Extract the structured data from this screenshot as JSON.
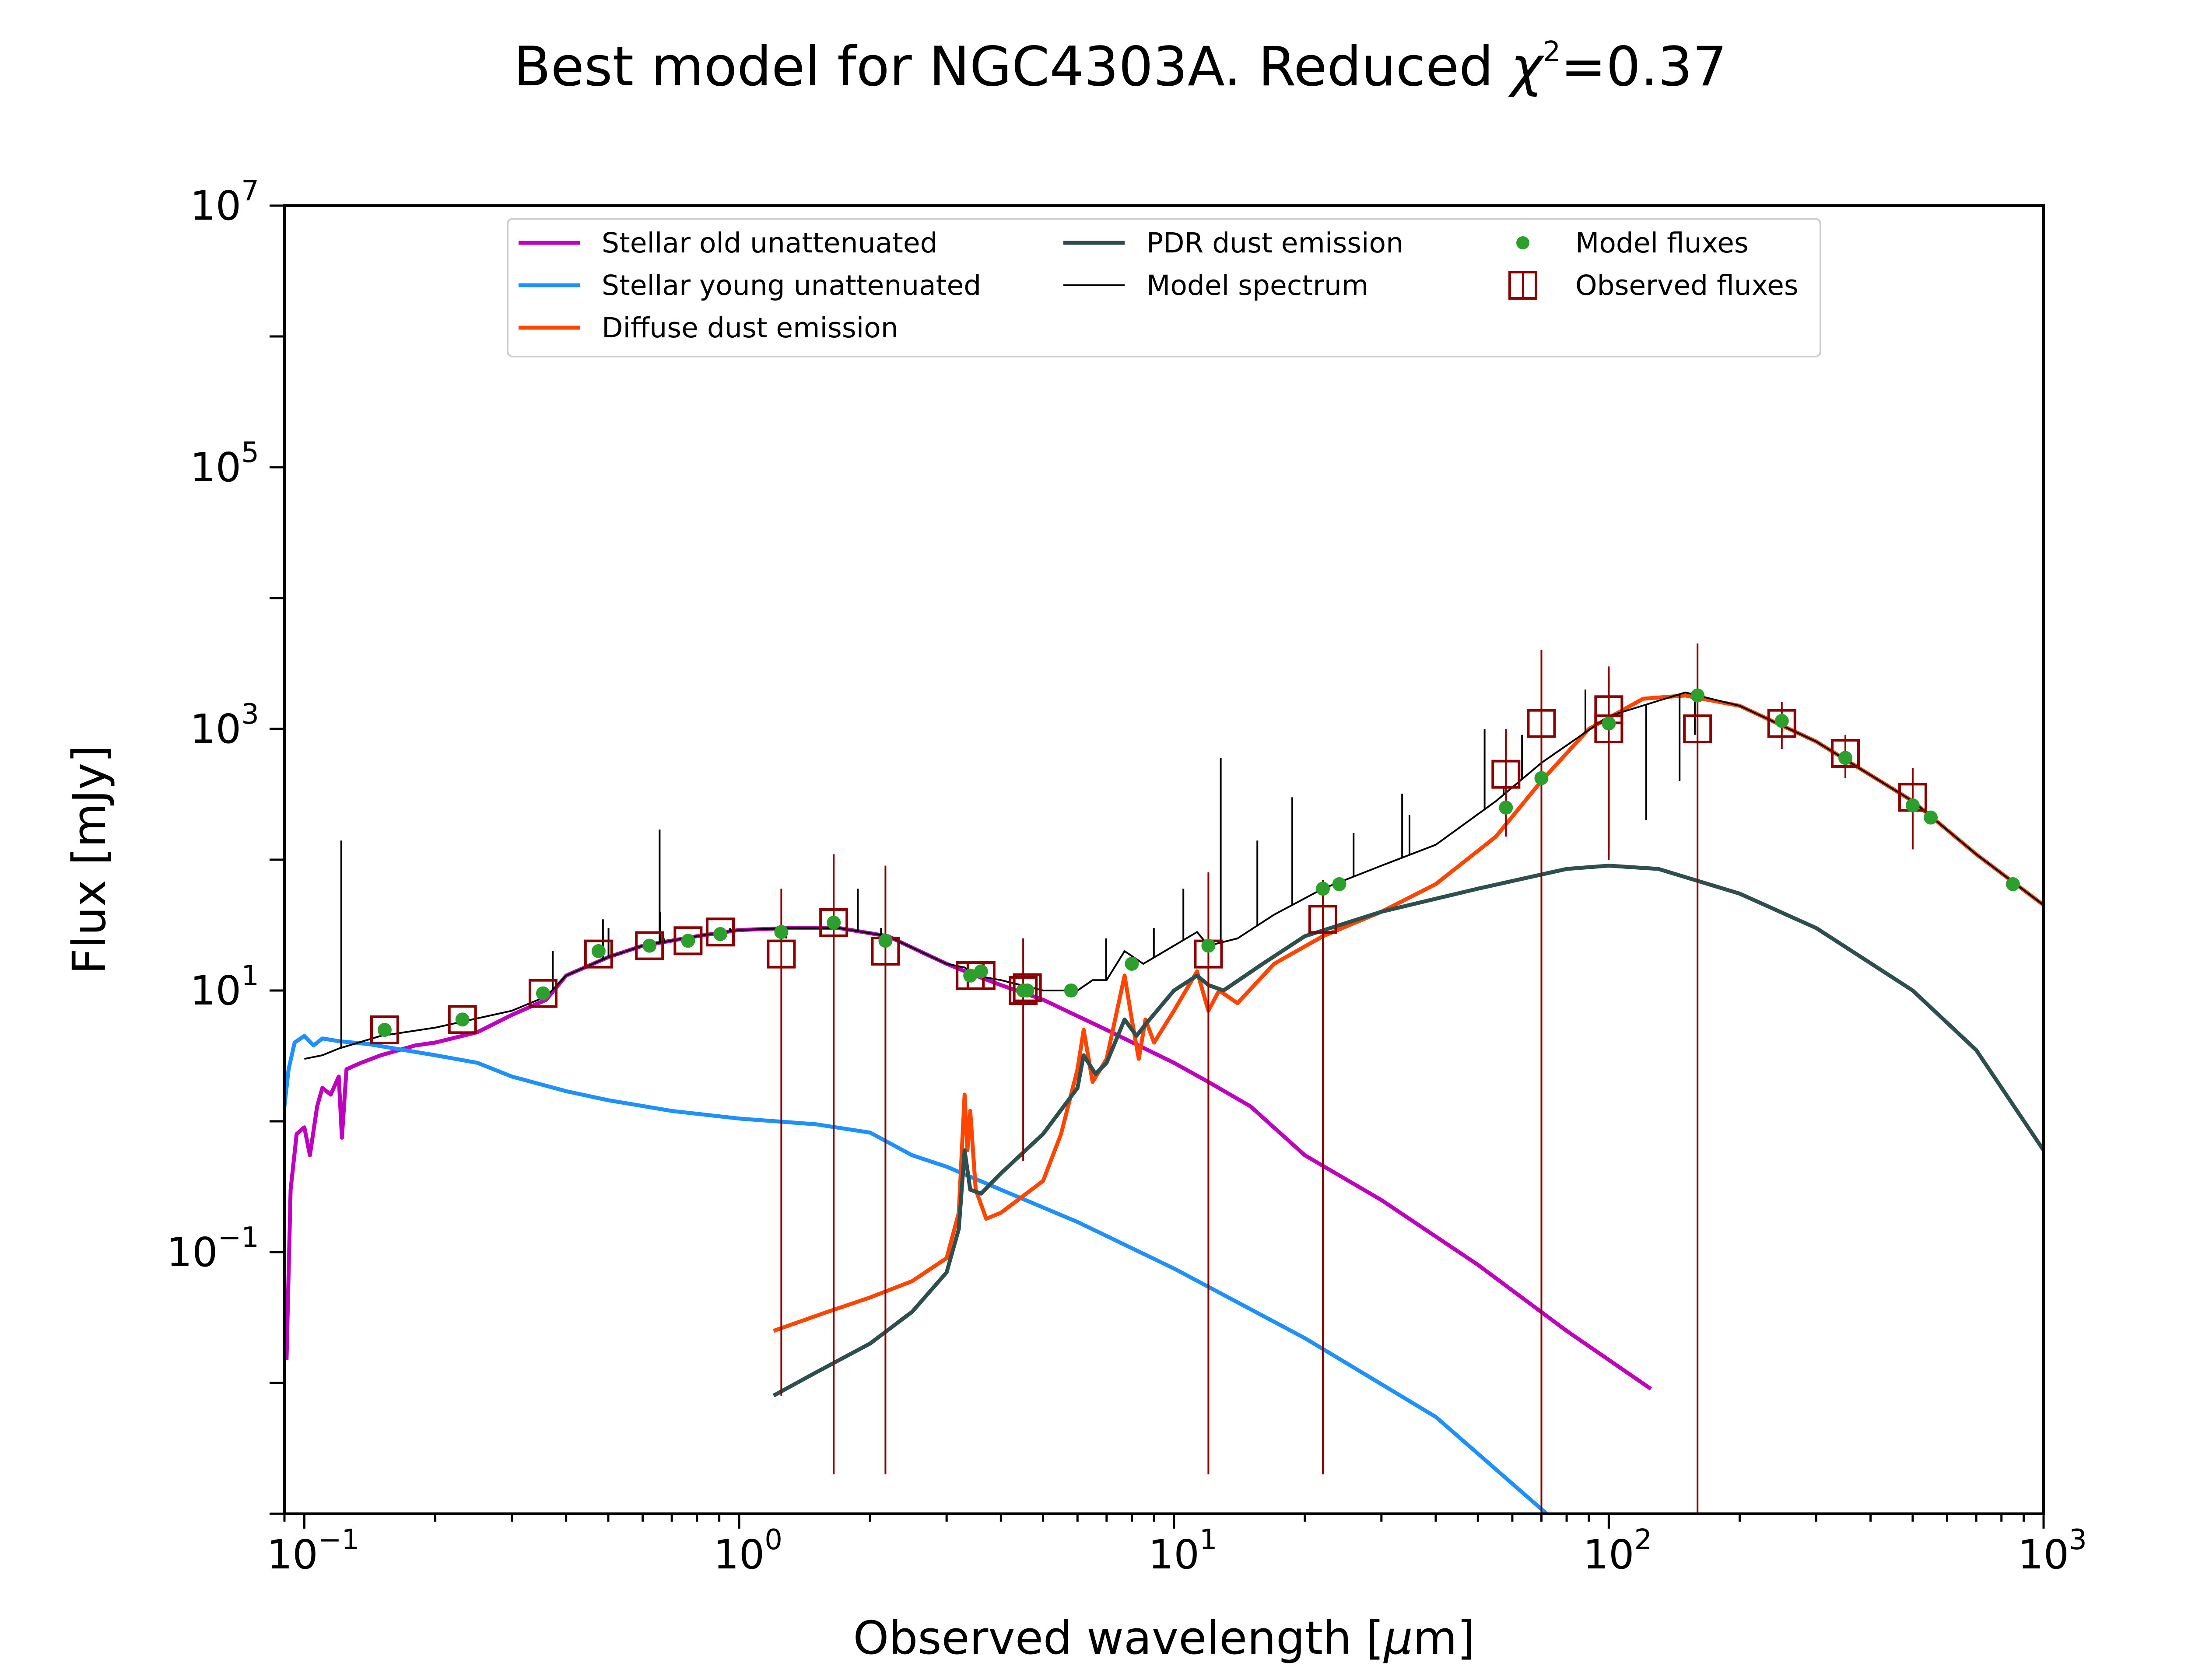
{
  "chart_data": {
    "type": "line",
    "title": "Best model for NGC4303A. Reduced χ²=0.37",
    "title_parts": {
      "before": "Best model for NGC4303A. Reduced ",
      "chi": "χ",
      "power": "2",
      "after": "=0.37"
    },
    "xlabel": "Observed wavelength [μm]",
    "xlabel_parts": {
      "before": "Observed wavelength [",
      "mu": "μ",
      "after": "m]"
    },
    "ylabel": "Flux [mJy]",
    "xscale": "log",
    "yscale": "log",
    "xlim": [
      0.09,
      1000
    ],
    "ylim": [
      0.001,
      10000000
    ],
    "x_ticks": [
      {
        "base": "10",
        "exp": "−1",
        "value": 0.1
      },
      {
        "base": "10",
        "exp": "0",
        "value": 1
      },
      {
        "base": "10",
        "exp": "1",
        "value": 10
      },
      {
        "base": "10",
        "exp": "2",
        "value": 100
      },
      {
        "base": "10",
        "exp": "3",
        "value": 1000
      }
    ],
    "y_ticks": [
      {
        "base": "10",
        "exp": "−1",
        "value": 0.1
      },
      {
        "base": "10",
        "exp": "1",
        "value": 10
      },
      {
        "base": "10",
        "exp": "3",
        "value": 1000
      },
      {
        "base": "10",
        "exp": "5",
        "value": 100000
      },
      {
        "base": "10",
        "exp": "7",
        "value": 10000000
      }
    ],
    "grid": false,
    "legend": {
      "position": "top-center",
      "columns": [
        [
          {
            "label": "Stellar old unattenuated",
            "kind": "line",
            "color": "#bf00bf"
          },
          {
            "label": "Stellar young unattenuated",
            "kind": "line",
            "color": "#1e90ff"
          },
          {
            "label": "Diffuse dust emission",
            "kind": "line",
            "color": "#ff4500"
          }
        ],
        [
          {
            "label": "PDR dust emission",
            "kind": "line",
            "color": "#2f4f4f"
          },
          {
            "label": "Model spectrum",
            "kind": "thin-line",
            "color": "#000000"
          }
        ],
        [
          {
            "label": "Model fluxes",
            "kind": "dot",
            "color": "#2ca02c"
          },
          {
            "label": "Observed fluxes",
            "kind": "square",
            "color": "#8b0000"
          }
        ]
      ]
    },
    "series": [
      {
        "name": "Stellar old unattenuated",
        "color": "#bf00bf",
        "points": [
          [
            0.091,
            0.015
          ],
          [
            0.093,
            0.3
          ],
          [
            0.096,
            0.8
          ],
          [
            0.1,
            0.9
          ],
          [
            0.103,
            0.55
          ],
          [
            0.107,
            1.3
          ],
          [
            0.11,
            1.8
          ],
          [
            0.115,
            1.6
          ],
          [
            0.12,
            2.2
          ],
          [
            0.122,
            0.75
          ],
          [
            0.125,
            2.5
          ],
          [
            0.135,
            2.8
          ],
          [
            0.15,
            3.2
          ],
          [
            0.18,
            3.8
          ],
          [
            0.2,
            4.0
          ],
          [
            0.25,
            4.8
          ],
          [
            0.3,
            6.5
          ],
          [
            0.36,
            8.5
          ],
          [
            0.4,
            13
          ],
          [
            0.5,
            18
          ],
          [
            0.6,
            22
          ],
          [
            0.8,
            26
          ],
          [
            1.0,
            29
          ],
          [
            1.3,
            30
          ],
          [
            1.7,
            30
          ],
          [
            2.2,
            26
          ],
          [
            2.6,
            20
          ],
          [
            3.0,
            16
          ],
          [
            3.5,
            13
          ],
          [
            4.0,
            11
          ],
          [
            5.0,
            8.5
          ],
          [
            7.0,
            5.0
          ],
          [
            10.0,
            2.8
          ],
          [
            12,
            2.0
          ],
          [
            15,
            1.3
          ],
          [
            20,
            0.55
          ],
          [
            30,
            0.25
          ],
          [
            50,
            0.08
          ],
          [
            80,
            0.025
          ],
          [
            125,
            0.009
          ]
        ]
      },
      {
        "name": "Stellar young unattenuated",
        "color": "#1e90ff",
        "points": [
          [
            0.09,
            1.3
          ],
          [
            0.092,
            2.5
          ],
          [
            0.095,
            4.0
          ],
          [
            0.1,
            4.5
          ],
          [
            0.105,
            3.8
          ],
          [
            0.11,
            4.3
          ],
          [
            0.12,
            4.1
          ],
          [
            0.14,
            3.9
          ],
          [
            0.17,
            3.5
          ],
          [
            0.2,
            3.2
          ],
          [
            0.25,
            2.8
          ],
          [
            0.3,
            2.2
          ],
          [
            0.4,
            1.7
          ],
          [
            0.5,
            1.45
          ],
          [
            0.7,
            1.2
          ],
          [
            1.0,
            1.05
          ],
          [
            1.5,
            0.95
          ],
          [
            2.0,
            0.82
          ],
          [
            2.5,
            0.55
          ],
          [
            3.0,
            0.45
          ],
          [
            4.0,
            0.3
          ],
          [
            6.0,
            0.17
          ],
          [
            10,
            0.075
          ],
          [
            20,
            0.022
          ],
          [
            40,
            0.0055
          ],
          [
            72,
            0.001
          ]
        ]
      },
      {
        "name": "Diffuse dust emission",
        "color": "#ff4500",
        "points": [
          [
            1.2,
            0.025
          ],
          [
            1.6,
            0.035
          ],
          [
            2.0,
            0.045
          ],
          [
            2.5,
            0.06
          ],
          [
            3.0,
            0.09
          ],
          [
            3.2,
            0.2
          ],
          [
            3.3,
            1.6
          ],
          [
            3.35,
            0.6
          ],
          [
            3.4,
            1.2
          ],
          [
            3.5,
            0.3
          ],
          [
            3.7,
            0.18
          ],
          [
            4.0,
            0.2
          ],
          [
            5.0,
            0.35
          ],
          [
            5.5,
            0.8
          ],
          [
            6.0,
            2.5
          ],
          [
            6.2,
            5.0
          ],
          [
            6.5,
            2.0
          ],
          [
            7.0,
            3.0
          ],
          [
            7.7,
            13
          ],
          [
            8.0,
            6
          ],
          [
            8.3,
            3.0
          ],
          [
            8.6,
            6
          ],
          [
            9.0,
            4
          ],
          [
            10,
            7
          ],
          [
            11.3,
            14
          ],
          [
            12,
            7
          ],
          [
            12.7,
            10
          ],
          [
            14,
            8
          ],
          [
            17,
            16
          ],
          [
            22,
            26
          ],
          [
            30,
            40
          ],
          [
            40,
            65
          ],
          [
            55,
            150
          ],
          [
            70,
            400
          ],
          [
            90,
            1000
          ],
          [
            120,
            1700
          ],
          [
            150,
            1800
          ],
          [
            200,
            1500
          ],
          [
            300,
            800
          ],
          [
            500,
            280
          ],
          [
            700,
            110
          ],
          [
            1000,
            45
          ]
        ]
      },
      {
        "name": "PDR dust emission",
        "color": "#2f4f4f",
        "points": [
          [
            1.2,
            0.008
          ],
          [
            1.5,
            0.012
          ],
          [
            2.0,
            0.02
          ],
          [
            2.5,
            0.035
          ],
          [
            3.0,
            0.07
          ],
          [
            3.2,
            0.15
          ],
          [
            3.3,
            0.6
          ],
          [
            3.4,
            0.3
          ],
          [
            3.6,
            0.28
          ],
          [
            4.0,
            0.4
          ],
          [
            5.0,
            0.8
          ],
          [
            6.0,
            1.8
          ],
          [
            6.2,
            3.2
          ],
          [
            6.6,
            2.3
          ],
          [
            7.0,
            2.8
          ],
          [
            7.7,
            6
          ],
          [
            8.2,
            4.5
          ],
          [
            8.6,
            5.5
          ],
          [
            10,
            10
          ],
          [
            11.3,
            13
          ],
          [
            12,
            11
          ],
          [
            13,
            10
          ],
          [
            16,
            16
          ],
          [
            20,
            26
          ],
          [
            30,
            40
          ],
          [
            50,
            60
          ],
          [
            80,
            85
          ],
          [
            100,
            90
          ],
          [
            130,
            85
          ],
          [
            200,
            55
          ],
          [
            300,
            30
          ],
          [
            500,
            10
          ],
          [
            700,
            3.5
          ],
          [
            1000,
            0.6
          ]
        ]
      },
      {
        "name": "Model spectrum",
        "color": "#000000",
        "points": [
          [
            0.1,
            3.0
          ],
          [
            0.11,
            3.2
          ],
          [
            0.12,
            3.6
          ],
          [
            0.15,
            4.5
          ],
          [
            0.2,
            5.2
          ],
          [
            0.3,
            7
          ],
          [
            0.36,
            9
          ],
          [
            0.4,
            13
          ],
          [
            0.5,
            18
          ],
          [
            0.6,
            22
          ],
          [
            0.8,
            26
          ],
          [
            1.0,
            29
          ],
          [
            1.3,
            30
          ],
          [
            1.7,
            30
          ],
          [
            2.2,
            26
          ],
          [
            2.6,
            20
          ],
          [
            3.0,
            16
          ],
          [
            3.3,
            15
          ],
          [
            3.5,
            13
          ],
          [
            4.0,
            12
          ],
          [
            5.0,
            10
          ],
          [
            6.0,
            10
          ],
          [
            6.5,
            12
          ],
          [
            7.0,
            12
          ],
          [
            7.7,
            20
          ],
          [
            8.5,
            16
          ],
          [
            10,
            22
          ],
          [
            11.3,
            28
          ],
          [
            12,
            22
          ],
          [
            14,
            25
          ],
          [
            17,
            38
          ],
          [
            22,
            60
          ],
          [
            30,
            90
          ],
          [
            40,
            130
          ],
          [
            55,
            280
          ],
          [
            70,
            550
          ],
          [
            100,
            1250
          ],
          [
            150,
            1900
          ],
          [
            200,
            1500
          ],
          [
            300,
            800
          ],
          [
            500,
            280
          ],
          [
            700,
            110
          ],
          [
            1000,
            45
          ]
        ]
      }
    ],
    "emission_lines": [
      [
        0.1216,
        140
      ],
      [
        0.3727,
        20
      ],
      [
        0.4861,
        35
      ],
      [
        0.5007,
        30
      ],
      [
        0.6563,
        170
      ],
      [
        0.6583,
        40
      ],
      [
        0.6716,
        25
      ],
      [
        0.9531,
        30
      ],
      [
        1.282,
        25
      ],
      [
        1.875,
        60
      ],
      [
        2.12,
        30
      ],
      [
        6.98,
        25
      ],
      [
        8.99,
        30
      ],
      [
        10.51,
        60
      ],
      [
        12.81,
        600
      ],
      [
        15.55,
        140
      ],
      [
        18.71,
        300
      ],
      [
        25.89,
        160
      ],
      [
        33.48,
        320
      ],
      [
        34.81,
        220
      ],
      [
        51.81,
        1000
      ],
      [
        57.32,
        350
      ],
      [
        63.18,
        900
      ],
      [
        88.36,
        2000
      ],
      [
        121.9,
        200
      ],
      [
        145.5,
        400
      ],
      [
        157.7,
        900
      ]
    ],
    "model_fluxes": [
      [
        0.153,
        5
      ],
      [
        0.231,
        6
      ],
      [
        0.354,
        9.5
      ],
      [
        0.475,
        20
      ],
      [
        0.622,
        22
      ],
      [
        0.763,
        24
      ],
      [
        0.905,
        27
      ],
      [
        1.25,
        28
      ],
      [
        1.65,
        33
      ],
      [
        2.17,
        24
      ],
      [
        3.4,
        13
      ],
      [
        3.6,
        14
      ],
      [
        4.5,
        10
      ],
      [
        4.6,
        10
      ],
      [
        5.8,
        10
      ],
      [
        8.0,
        16
      ],
      [
        12,
        22
      ],
      [
        22,
        60
      ],
      [
        24,
        65
      ],
      [
        58,
        250
      ],
      [
        70,
        420
      ],
      [
        100,
        1100
      ],
      [
        160,
        1800
      ],
      [
        250,
        1150
      ],
      [
        350,
        600
      ],
      [
        500,
        260
      ],
      [
        550,
        210
      ],
      [
        850,
        65
      ]
    ],
    "observed_fluxes": [
      {
        "x": 0.153,
        "y": 5
      },
      {
        "x": 0.231,
        "y": 6
      },
      {
        "x": 0.354,
        "y": 9.5
      },
      {
        "x": 0.475,
        "y": 19
      },
      {
        "x": 0.622,
        "y": 22
      },
      {
        "x": 0.763,
        "y": 24
      },
      {
        "x": 0.905,
        "y": 28
      },
      {
        "x": 1.25,
        "y": 19,
        "lo": 0.008,
        "hi": 60
      },
      {
        "x": 1.65,
        "y": 33,
        "lo": 0.002,
        "hi": 110
      },
      {
        "x": 2.17,
        "y": 20,
        "lo": 0.002,
        "hi": 90
      },
      {
        "x": 3.4,
        "y": 13
      },
      {
        "x": 3.6,
        "y": 13
      },
      {
        "x": 4.5,
        "y": 10,
        "lo": 0.5,
        "hi": 25
      },
      {
        "x": 4.6,
        "y": 10.5
      },
      {
        "x": 12,
        "y": 19,
        "lo": 0.002,
        "hi": 80
      },
      {
        "x": 22,
        "y": 35,
        "lo": 0.002,
        "hi": 70
      },
      {
        "x": 58,
        "y": 450,
        "lo": 150,
        "hi": 1000
      },
      {
        "x": 70,
        "y": 1100,
        "lo": 0.001,
        "hi": 4000
      },
      {
        "x": 100,
        "y": 1000,
        "lo": 120,
        "hi": 2500
      },
      {
        "x": 100,
        "y": 1400,
        "lo": 100,
        "hi": 3000
      },
      {
        "x": 160,
        "y": 1000,
        "lo": 0.001,
        "hi": 4500
      },
      {
        "x": 250,
        "y": 1100,
        "lo": 700,
        "hi": 1600
      },
      {
        "x": 350,
        "y": 650,
        "lo": 420,
        "hi": 900
      },
      {
        "x": 500,
        "y": 300,
        "lo": 120,
        "hi": 500
      }
    ]
  }
}
